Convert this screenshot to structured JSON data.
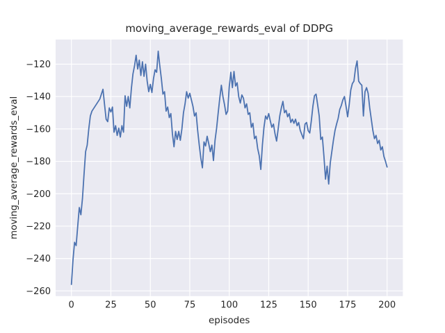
{
  "chart_data": {
    "type": "line",
    "title": "moving_average_rewards_eval of DDPG",
    "xlabel": "episodes",
    "ylabel": "moving_average_rewards_eval",
    "legend": null,
    "grid": true,
    "xlim": [
      -10,
      210
    ],
    "ylim": [
      -263.2,
      -104.8
    ],
    "xticks": [
      0,
      25,
      50,
      75,
      100,
      125,
      150,
      175,
      200
    ],
    "xtick_labels": [
      "0",
      "25",
      "50",
      "75",
      "100",
      "125",
      "150",
      "175",
      "200"
    ],
    "yticks": [
      -120,
      -140,
      -160,
      -180,
      -200,
      -220,
      -240,
      -260
    ],
    "ytick_labels": [
      "−120",
      "−140",
      "−160",
      "−180",
      "−200",
      "−220",
      "−240",
      "−260"
    ],
    "colors": {
      "line": "#4C72B0",
      "axes_background": "#EAEAF2",
      "grid": "#FFFFFF",
      "figure_background": "#FFFFFF",
      "text": "#262626"
    },
    "series_name": "moving_average_rewards_eval",
    "x_start": 0,
    "x_step": 1,
    "values": [
      -256,
      -241,
      -230,
      -232,
      -220,
      -208.5,
      -213,
      -203,
      -188,
      -174,
      -170,
      -160,
      -152,
      -149,
      -147.5,
      -146,
      -144.5,
      -143,
      -141.5,
      -138.5,
      -135.5,
      -145,
      -154,
      -155.5,
      -147,
      -149.5,
      -146.5,
      -162,
      -158,
      -164,
      -159.5,
      -165,
      -158,
      -162,
      -139.5,
      -146,
      -140,
      -147,
      -135,
      -126,
      -121,
      -114.5,
      -123,
      -117.5,
      -127,
      -118.5,
      -127.5,
      -120,
      -130.5,
      -137,
      -132.5,
      -137.5,
      -129,
      -123.5,
      -125,
      -112,
      -121,
      -129,
      -138.5,
      -137,
      -149,
      -146.5,
      -153,
      -150.5,
      -163,
      -171,
      -161.5,
      -166.5,
      -161.5,
      -167,
      -160,
      -150,
      -144.5,
      -137,
      -141,
      -138,
      -142,
      -146,
      -152,
      -150,
      -161,
      -170,
      -178,
      -184,
      -168,
      -170.5,
      -164.5,
      -169,
      -174,
      -170,
      -179.5,
      -167,
      -159.5,
      -150,
      -141,
      -133,
      -140,
      -145,
      -151,
      -149,
      -134,
      -125,
      -134.5,
      -124.5,
      -133.5,
      -131.5,
      -140,
      -144,
      -139,
      -141,
      -147,
      -144.5,
      -151,
      -150,
      -159,
      -156.5,
      -166,
      -164.5,
      -172,
      -176.5,
      -185,
      -170,
      -159,
      -152,
      -154,
      -150.5,
      -155,
      -159,
      -157,
      -163,
      -167.5,
      -160,
      -152,
      -147,
      -143,
      -150,
      -148.5,
      -152.5,
      -150.5,
      -156,
      -154,
      -156.5,
      -154,
      -158,
      -156,
      -161,
      -163.5,
      -166,
      -157,
      -156,
      -161,
      -162.5,
      -155,
      -146,
      -139.5,
      -138.5,
      -145,
      -152,
      -166.5,
      -165,
      -177,
      -191,
      -183,
      -194,
      -181,
      -174,
      -167,
      -161,
      -157,
      -153.5,
      -148,
      -145.5,
      -142,
      -140,
      -146,
      -152.5,
      -145,
      -136,
      -132,
      -130.5,
      -122.5,
      -118,
      -130.5,
      -132,
      -133,
      -152,
      -137,
      -134.5,
      -138,
      -147,
      -154,
      -161,
      -166,
      -164,
      -169,
      -167,
      -173,
      -171,
      -177,
      -180,
      -183.5
    ]
  }
}
